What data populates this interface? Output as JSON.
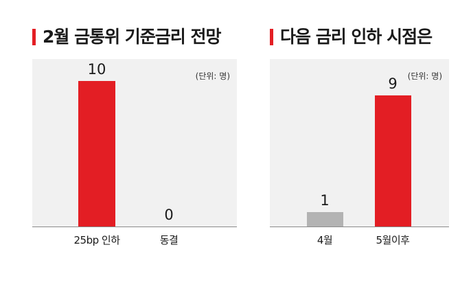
{
  "chart_data": [
    {
      "type": "bar",
      "title": "2월 금통위 기준금리 전망",
      "unit": "(단위: 명)",
      "categories": [
        "25bp 인하",
        "동결"
      ],
      "values": [
        10,
        0
      ],
      "value_labels": [
        "10",
        "0"
      ],
      "ylim": [
        0,
        11.5
      ],
      "colors": [
        "#e31e24",
        "#e31e24"
      ],
      "grid": false
    },
    {
      "type": "bar",
      "title": "다음 금리 인하 시점은",
      "unit": "(단위: 명)",
      "categories": [
        "4월",
        "5월이후"
      ],
      "values": [
        1,
        9
      ],
      "value_labels": [
        "1",
        "9"
      ],
      "ylim": [
        0,
        11.5
      ],
      "colors": [
        "#b3b3b3",
        "#e31e24"
      ],
      "grid": false
    }
  ],
  "colors": {
    "accent": "#e31e24",
    "bar_gray": "#b3b3b3",
    "plot_bg": "#f1f1f1"
  }
}
